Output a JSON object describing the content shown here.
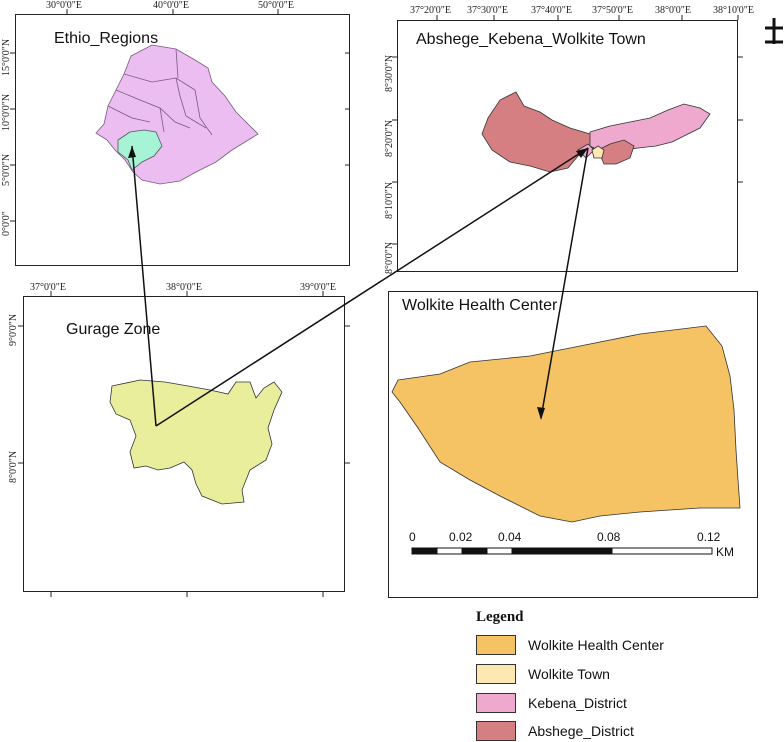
{
  "panels": {
    "ethio": {
      "title": "Ethio_Regions",
      "top_ticks": [
        "30°0'0\"E",
        "40°0'0\"E",
        "50°0'0\"E"
      ],
      "left_ticks": [
        "15°0'0\"N",
        "10°0'0\"N",
        "5°0'0\"N",
        "0°0'0\""
      ]
    },
    "abshege": {
      "title": "Abshege_Kebena_Wolkite Town",
      "top_ticks": [
        "37°20'0\"E",
        "37°30'0\"E",
        "37°40'0\"E",
        "37°50'0\"E",
        "38°0'0\"E",
        "38°10'0\"E"
      ],
      "left_ticks": [
        "8°30'0\"N",
        "8°20'0\"N",
        "8°10'0\"N",
        "8°0'0\"N"
      ]
    },
    "gurage": {
      "title": "Gurage Zone",
      "top_ticks": [
        "37°0'0\"E",
        "38°0'0\"E",
        "39°0'0\"E"
      ],
      "left_ticks": [
        "9°0'0\"N",
        "8°0'0\"N"
      ]
    },
    "health": {
      "title": "Wolkite Health Center"
    }
  },
  "scale_bar": {
    "labels": [
      "0",
      "0.02",
      "0.04",
      "0.08",
      "0.12"
    ],
    "unit": "KM"
  },
  "legend": {
    "title": "Legend",
    "items": [
      {
        "label": "Wolkite Health Center",
        "color": "#f5c264"
      },
      {
        "label": "Wolkite Town",
        "color": "#fde8b4"
      },
      {
        "label": "Kebena_District",
        "color": "#efa9cf"
      },
      {
        "label": "Abshege_District",
        "color": "#d67f82"
      }
    ]
  },
  "colors": {
    "ethiopia": "#ecbdf0",
    "gurage_highlight": "#a6f3d6",
    "gurage_zone": "#e8ee9c",
    "health_center": "#f5c264"
  },
  "north_arrow": "north-arrow-icon"
}
